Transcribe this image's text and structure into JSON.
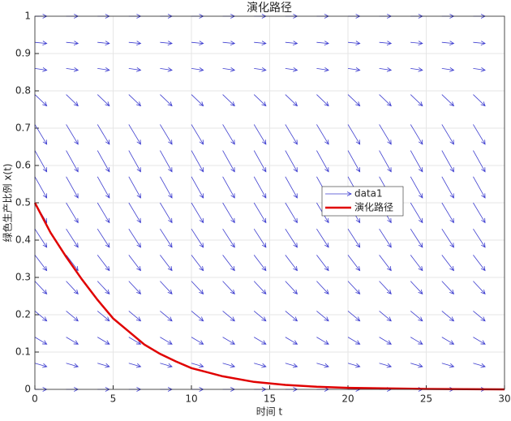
{
  "chart_data": {
    "type": "combo",
    "title": "演化路径",
    "xlabel": "时间 t",
    "ylabel": "绿色生产比例 x(t)",
    "xlim": [
      0,
      30
    ],
    "ylim": [
      0,
      1
    ],
    "xticks": [
      0,
      5,
      10,
      15,
      20,
      25,
      30
    ],
    "yticks": [
      0,
      0.1,
      0.2,
      0.3,
      0.4,
      0.5,
      0.6,
      0.7,
      0.8,
      0.9,
      1
    ],
    "grid": true,
    "legend": "center right",
    "series": [
      {
        "name": "data1",
        "type": "quiver",
        "color": "#3c3ccf",
        "x": [
          0,
          2,
          4,
          6,
          8,
          10,
          12,
          14,
          16,
          18,
          20,
          22,
          24,
          26,
          28
        ],
        "y": [
          0,
          0.07,
          0.14,
          0.21,
          0.29,
          0.36,
          0.43,
          0.5,
          0.57,
          0.64,
          0.71,
          0.79,
          0.86,
          0.93,
          1
        ],
        "u": [
          1,
          1,
          1,
          1,
          1,
          1,
          1,
          1,
          1,
          1,
          1,
          1,
          1,
          1,
          1
        ],
        "v": [
          0,
          -0.012,
          -0.025,
          -0.035,
          -0.045,
          -0.055,
          -0.065,
          -0.07,
          -0.075,
          -0.075,
          -0.07,
          -0.04,
          -0.006,
          -0.004,
          0
        ]
      },
      {
        "name": "演化路径",
        "type": "line",
        "color": "#e00000",
        "x": [
          0,
          1,
          2,
          3,
          4,
          5,
          6,
          7,
          8,
          9,
          10,
          12,
          14,
          16,
          18,
          20,
          25,
          30
        ],
        "values": [
          0.5,
          0.42,
          0.355,
          0.295,
          0.24,
          0.19,
          0.155,
          0.12,
          0.095,
          0.075,
          0.057,
          0.035,
          0.02,
          0.012,
          0.007,
          0.004,
          0.001,
          0
        ]
      }
    ]
  }
}
